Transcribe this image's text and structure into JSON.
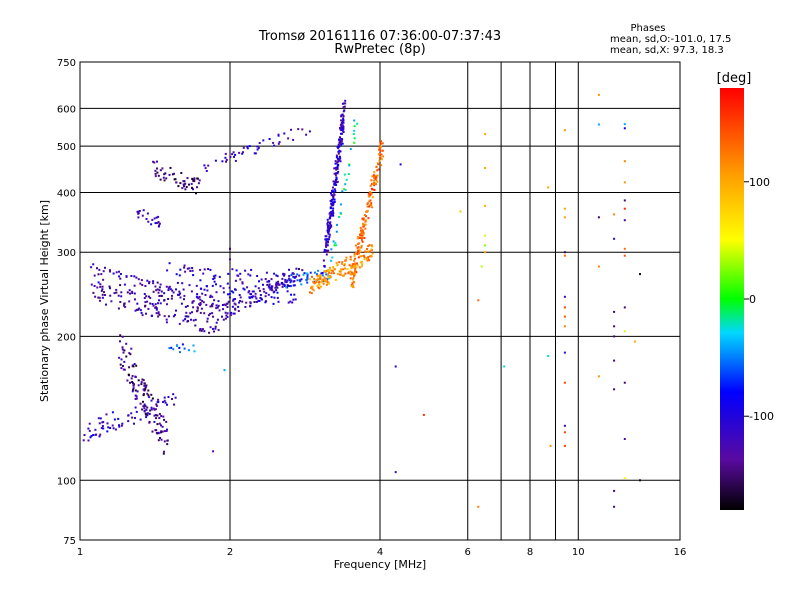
{
  "chart_data": {
    "type": "scatter",
    "title": "Tromsø 20161116 07:36:00-07:37:43",
    "subtitle": "RwPretec (8p)",
    "xlabel": "Frequency [MHz]",
    "ylabel": "Stationary phase Virtual Height [km]",
    "xscale": "log",
    "yscale": "log",
    "xlim": [
      1,
      16
    ],
    "ylim": [
      75,
      750
    ],
    "xticks": [
      1,
      2,
      4,
      6,
      8,
      10,
      16
    ],
    "xtick_labels": [
      "1",
      "2",
      "4",
      "6",
      "8",
      "10",
      "16"
    ],
    "x_minor_gridlines": [
      6,
      7,
      8,
      9,
      10
    ],
    "yticks": [
      75,
      100,
      200,
      300,
      400,
      500,
      600,
      750
    ],
    "ytick_labels": [
      "75",
      "100",
      "200",
      "300",
      "400",
      "500",
      "600",
      "750"
    ],
    "grid": true,
    "stats": {
      "heading": "Phases",
      "line1": "mean, sd,O:-101.0, 17.5",
      "line2": "mean, sd,X:  97.3, 18.3"
    },
    "colorbar": {
      "unit": "[deg]",
      "range": [
        -180,
        180
      ],
      "ticks": [
        100,
        0,
        -100
      ],
      "tick_labels": [
        "100",
        "0",
        "-100"
      ],
      "colormap": "rainbow-black-to-red"
    },
    "traces": [
      {
        "x_range": [
          1.0,
          1.55
        ],
        "y_start": 125,
        "y_end": 148,
        "phase": -110,
        "count": 70,
        "spread": 0.05
      },
      {
        "x_range": [
          1.2,
          1.5
        ],
        "y_start": 190,
        "y_end": 120,
        "phase": -140,
        "count": 130,
        "spread": 0.09
      },
      {
        "x_range": [
          1.5,
          1.7
        ],
        "y_start": 188,
        "y_end": 190,
        "phase": -60,
        "count": 12,
        "spread": 0.02
      },
      {
        "x_range": [
          1.05,
          1.9
        ],
        "y_start": 260,
        "y_end": 218,
        "phase": -125,
        "count": 230,
        "spread": 0.09
      },
      {
        "x_range": [
          1.9,
          2.8
        ],
        "y_start": 222,
        "y_end": 275,
        "phase": -120,
        "count": 120,
        "spread": 0.04
      },
      {
        "x_range": [
          1.5,
          2.7
        ],
        "y_start": 265,
        "y_end": 250,
        "phase": -105,
        "count": 130,
        "spread": 0.08
      },
      {
        "x_range": [
          2.6,
          3.2
        ],
        "y_start": 260,
        "y_end": 270,
        "phase": -60,
        "count": 40,
        "spread": 0.03
      },
      {
        "x_range": [
          2.9,
          3.85
        ],
        "y_start": 255,
        "y_end": 300,
        "phase": 110,
        "count": 150,
        "spread": 0.04
      },
      {
        "x_range": [
          3.5,
          4.05
        ],
        "y_start": 260,
        "y_end": 505,
        "phase": 130,
        "count": 170,
        "spread": 0.05
      },
      {
        "x_range": [
          3.1,
          3.4
        ],
        "y_start": 290,
        "y_end": 600,
        "phase": -115,
        "count": 220,
        "spread": 0.05
      },
      {
        "x_range": [
          3.2,
          3.6
        ],
        "y_start": 290,
        "y_end": 590,
        "phase": -20,
        "count": 30,
        "spread": 0.05
      },
      {
        "x_range": [
          1.4,
          1.75
        ],
        "y_start": 450,
        "y_end": 410,
        "phase": -145,
        "count": 55,
        "spread": 0.04
      },
      {
        "x_range": [
          1.75,
          2.9
        ],
        "y_start": 450,
        "y_end": 545,
        "phase": -110,
        "count": 45,
        "spread": 0.03
      },
      {
        "x_range": [
          1.3,
          1.45
        ],
        "y_start": 365,
        "y_end": 345,
        "phase": -115,
        "count": 22,
        "spread": 0.03
      }
    ],
    "points": [
      {
        "x": 4.3,
        "y": 173,
        "phase": -110
      },
      {
        "x": 4.4,
        "y": 458,
        "phase": -105
      },
      {
        "x": 4.3,
        "y": 104,
        "phase": -120
      },
      {
        "x": 4.9,
        "y": 137,
        "phase": 160
      },
      {
        "x": 5.8,
        "y": 365,
        "phase": 80
      },
      {
        "x": 6.3,
        "y": 88,
        "phase": 120
      },
      {
        "x": 6.3,
        "y": 238,
        "phase": 130
      },
      {
        "x": 6.4,
        "y": 280,
        "phase": 35
      },
      {
        "x": 6.5,
        "y": 530,
        "phase": 100
      },
      {
        "x": 6.5,
        "y": 450,
        "phase": 100
      },
      {
        "x": 6.5,
        "y": 375,
        "phase": 95
      },
      {
        "x": 6.5,
        "y": 325,
        "phase": 40
      },
      {
        "x": 6.5,
        "y": 310,
        "phase": 25
      },
      {
        "x": 6.5,
        "y": 300,
        "phase": 110
      },
      {
        "x": 7.1,
        "y": 173,
        "phase": -20
      },
      {
        "x": 8.7,
        "y": 410,
        "phase": 100
      },
      {
        "x": 8.7,
        "y": 182,
        "phase": -20
      },
      {
        "x": 8.8,
        "y": 118,
        "phase": 110
      },
      {
        "x": 9.4,
        "y": 540,
        "phase": 110
      },
      {
        "x": 9.4,
        "y": 370,
        "phase": 100
      },
      {
        "x": 9.4,
        "y": 355,
        "phase": 105
      },
      {
        "x": 9.4,
        "y": 300,
        "phase": -160
      },
      {
        "x": 9.4,
        "y": 295,
        "phase": 130
      },
      {
        "x": 9.4,
        "y": 242,
        "phase": -120
      },
      {
        "x": 9.4,
        "y": 230,
        "phase": 150
      },
      {
        "x": 9.4,
        "y": 220,
        "phase": 140
      },
      {
        "x": 9.4,
        "y": 210,
        "phase": 120
      },
      {
        "x": 9.4,
        "y": 185,
        "phase": -110
      },
      {
        "x": 9.4,
        "y": 160,
        "phase": 150
      },
      {
        "x": 9.4,
        "y": 130,
        "phase": -110
      },
      {
        "x": 9.4,
        "y": 126,
        "phase": 150
      },
      {
        "x": 9.4,
        "y": 118,
        "phase": 150
      },
      {
        "x": 11.0,
        "y": 640,
        "phase": 110
      },
      {
        "x": 11.0,
        "y": 555,
        "phase": -40
      },
      {
        "x": 11.0,
        "y": 355,
        "phase": -150
      },
      {
        "x": 11.0,
        "y": 280,
        "phase": 120
      },
      {
        "x": 11.0,
        "y": 165,
        "phase": 110
      },
      {
        "x": 11.8,
        "y": 360,
        "phase": 120
      },
      {
        "x": 11.8,
        "y": 320,
        "phase": -110
      },
      {
        "x": 11.8,
        "y": 225,
        "phase": -150
      },
      {
        "x": 11.8,
        "y": 210,
        "phase": -150
      },
      {
        "x": 11.8,
        "y": 200,
        "phase": -150
      },
      {
        "x": 11.8,
        "y": 178,
        "phase": -150
      },
      {
        "x": 11.8,
        "y": 155,
        "phase": -150
      },
      {
        "x": 11.8,
        "y": 95,
        "phase": -150
      },
      {
        "x": 11.8,
        "y": 88,
        "phase": -150
      },
      {
        "x": 12.4,
        "y": 556,
        "phase": -40
      },
      {
        "x": 12.4,
        "y": 545,
        "phase": -90
      },
      {
        "x": 12.4,
        "y": 465,
        "phase": 120
      },
      {
        "x": 12.4,
        "y": 420,
        "phase": 110
      },
      {
        "x": 12.4,
        "y": 385,
        "phase": -150
      },
      {
        "x": 12.4,
        "y": 370,
        "phase": 160
      },
      {
        "x": 12.4,
        "y": 350,
        "phase": -120
      },
      {
        "x": 12.4,
        "y": 305,
        "phase": 130
      },
      {
        "x": 12.4,
        "y": 295,
        "phase": 140
      },
      {
        "x": 12.4,
        "y": 230,
        "phase": -150
      },
      {
        "x": 12.4,
        "y": 205,
        "phase": 40
      },
      {
        "x": 12.4,
        "y": 160,
        "phase": -150
      },
      {
        "x": 12.4,
        "y": 122,
        "phase": -130
      },
      {
        "x": 12.4,
        "y": 101,
        "phase": 50
      },
      {
        "x": 13.0,
        "y": 195,
        "phase": 100
      },
      {
        "x": 13.3,
        "y": 270,
        "phase": -170
      },
      {
        "x": 13.3,
        "y": 100,
        "phase": -170
      },
      {
        "x": 1.85,
        "y": 115,
        "phase": -130
      },
      {
        "x": 1.95,
        "y": 170,
        "phase": -40
      },
      {
        "x": 2.0,
        "y": 290,
        "phase": -130
      },
      {
        "x": 2.0,
        "y": 305,
        "phase": -150
      }
    ]
  }
}
